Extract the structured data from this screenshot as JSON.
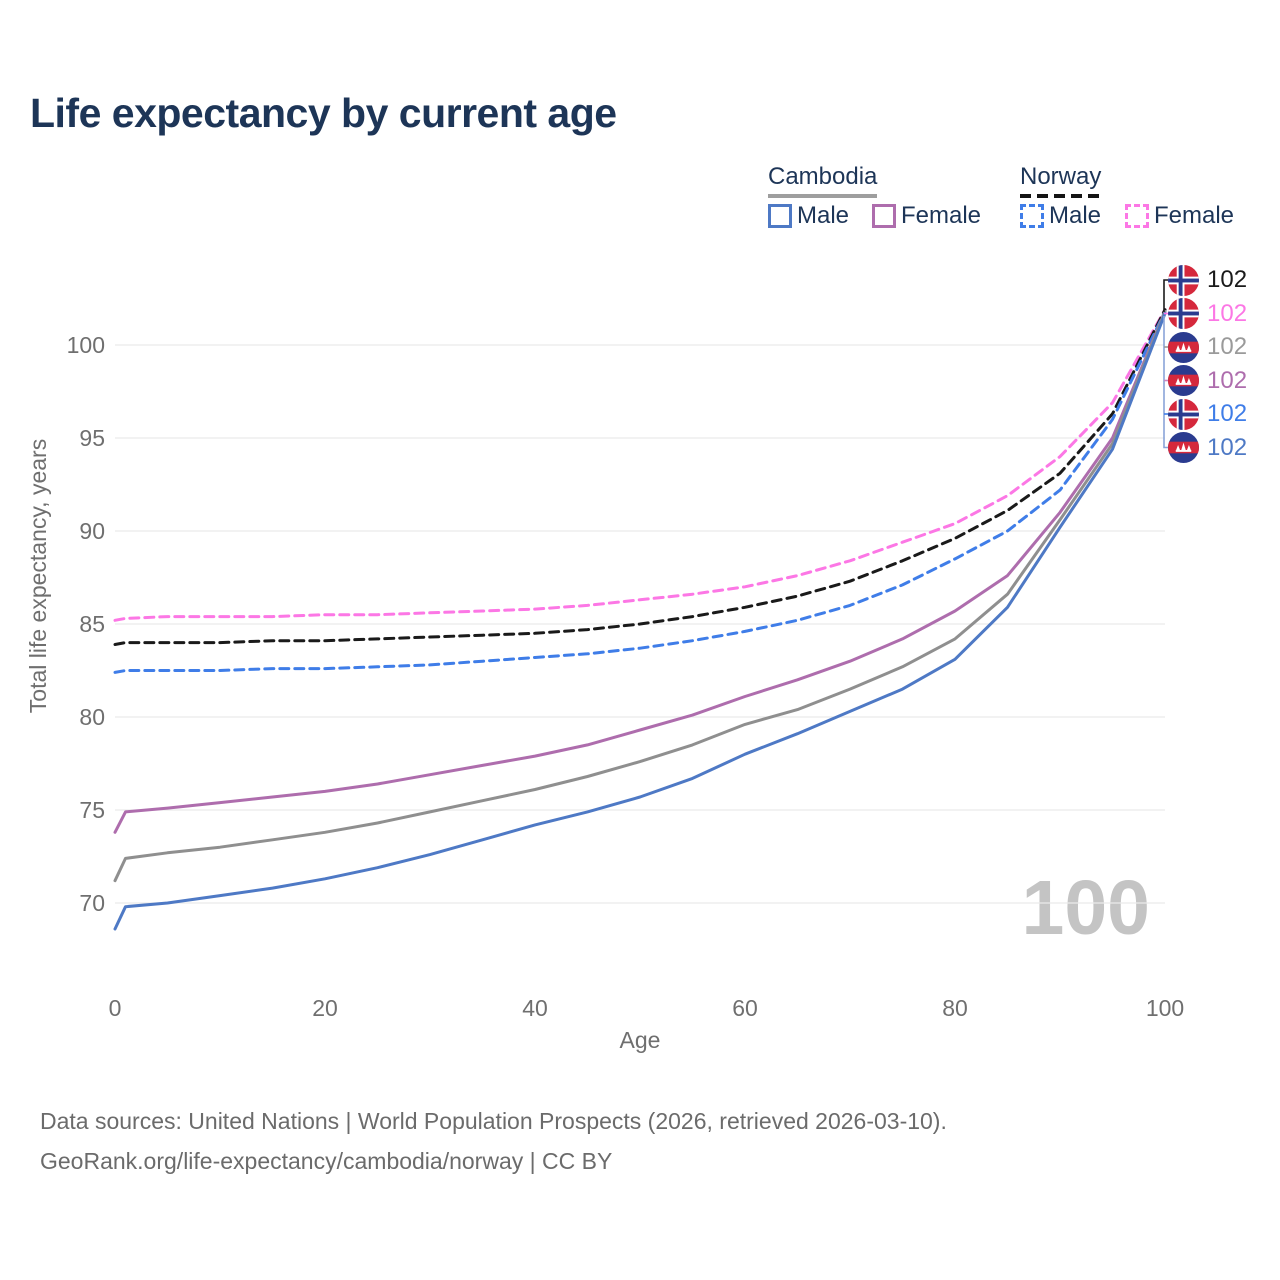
{
  "title": "Life expectancy by current age",
  "legend": {
    "cambodia": {
      "label": "Cambodia",
      "male_label": "Male",
      "female_label": "Female"
    },
    "norway": {
      "label": "Norway",
      "male_label": "Male",
      "female_label": "Female"
    }
  },
  "colors": {
    "title_text": "#1d3557",
    "axis_text": "#6f6f6f",
    "grid": "#eaeaea",
    "watermark": "#c4c4c4",
    "cambodia_male": "#4e79c5",
    "cambodia_female": "#ae6dad",
    "cambodia_total": "#8f8f8f",
    "norway_male": "#3f7de8",
    "norway_female": "#fc77e5",
    "norway_total": "#1a1a1a"
  },
  "chart_data": {
    "type": "line",
    "title": "Life expectancy by current age",
    "xlabel": "Age",
    "ylabel": "Total life expectancy, years",
    "xlim": [
      0,
      100
    ],
    "ylim": [
      68,
      103
    ],
    "x_ticks": [
      0,
      20,
      40,
      60,
      80,
      100
    ],
    "y_ticks": [
      70,
      75,
      80,
      85,
      90,
      95,
      100
    ],
    "grid": "horizontal-only",
    "legend_position": "top-right",
    "age_counter": "100",
    "x": [
      0,
      1,
      5,
      10,
      15,
      20,
      25,
      30,
      35,
      40,
      45,
      50,
      55,
      60,
      65,
      70,
      75,
      80,
      85,
      90,
      95,
      100
    ],
    "series": [
      {
        "name": "Norway Female",
        "country": "Norway",
        "sex": "Female",
        "color": "#fc77e5",
        "dash": true,
        "values": [
          85.2,
          85.3,
          85.4,
          85.4,
          85.4,
          85.5,
          85.5,
          85.6,
          85.7,
          85.8,
          86.0,
          86.3,
          86.6,
          87.0,
          87.6,
          88.4,
          89.4,
          90.4,
          91.9,
          94.0,
          96.9,
          101.9
        ]
      },
      {
        "name": "Norway",
        "country": "Norway",
        "sex": "Total",
        "color": "#1a1a1a",
        "dash": true,
        "values": [
          83.9,
          84.0,
          84.0,
          84.0,
          84.1,
          84.1,
          84.2,
          84.3,
          84.4,
          84.5,
          84.7,
          85.0,
          85.4,
          85.9,
          86.5,
          87.3,
          88.4,
          89.6,
          91.1,
          93.1,
          96.3,
          101.9
        ]
      },
      {
        "name": "Norway Male",
        "country": "Norway",
        "sex": "Male",
        "color": "#3f7de8",
        "dash": true,
        "values": [
          82.4,
          82.5,
          82.5,
          82.5,
          82.6,
          82.6,
          82.7,
          82.8,
          83.0,
          83.2,
          83.4,
          83.7,
          84.1,
          84.6,
          85.2,
          86.0,
          87.1,
          88.5,
          90.0,
          92.2,
          96.0,
          101.8
        ]
      },
      {
        "name": "Cambodia Female",
        "country": "Cambodia",
        "sex": "Female",
        "color": "#ae6dad",
        "dash": false,
        "values": [
          73.8,
          74.9,
          75.1,
          75.4,
          75.7,
          76.0,
          76.4,
          76.9,
          77.4,
          77.9,
          78.5,
          79.3,
          80.1,
          81.1,
          82.0,
          83.0,
          84.2,
          85.7,
          87.6,
          91.0,
          95.0,
          101.8
        ]
      },
      {
        "name": "Cambodia",
        "country": "Cambodia",
        "sex": "Total",
        "color": "#8f8f8f",
        "dash": false,
        "values": [
          71.2,
          72.4,
          72.7,
          73.0,
          73.4,
          73.8,
          74.3,
          74.9,
          75.5,
          76.1,
          76.8,
          77.6,
          78.5,
          79.6,
          80.4,
          81.5,
          82.7,
          84.2,
          86.6,
          90.6,
          94.7,
          101.8
        ]
      },
      {
        "name": "Cambodia Male",
        "country": "Cambodia",
        "sex": "Male",
        "color": "#4e79c5",
        "dash": false,
        "values": [
          68.6,
          69.8,
          70.0,
          70.4,
          70.8,
          71.3,
          71.9,
          72.6,
          73.4,
          74.2,
          74.9,
          75.7,
          76.7,
          78.0,
          79.1,
          80.3,
          81.5,
          83.1,
          85.9,
          90.2,
          94.4,
          101.7
        ]
      }
    ],
    "end_labels": [
      {
        "flag": "norway",
        "series": "Norway",
        "value": "102",
        "color": "#1a1a1a"
      },
      {
        "flag": "norway",
        "series": "Norway Female",
        "value": "102",
        "color": "#fc77e5"
      },
      {
        "flag": "cambodia",
        "series": "Cambodia",
        "value": "102",
        "color": "#9a9a9a"
      },
      {
        "flag": "cambodia",
        "series": "Cambodia Female",
        "value": "102",
        "color": "#ae6dad"
      },
      {
        "flag": "norway",
        "series": "Norway Male",
        "value": "102",
        "color": "#3f7de8"
      },
      {
        "flag": "cambodia",
        "series": "Cambodia Male",
        "value": "102",
        "color": "#4e79c5"
      }
    ]
  },
  "footer": {
    "line1": "Data sources: United Nations | World Population Prospects (2026, retrieved 2026-03-10).",
    "line2": "GeoRank.org/life-expectancy/cambodia/norway | CC BY"
  }
}
